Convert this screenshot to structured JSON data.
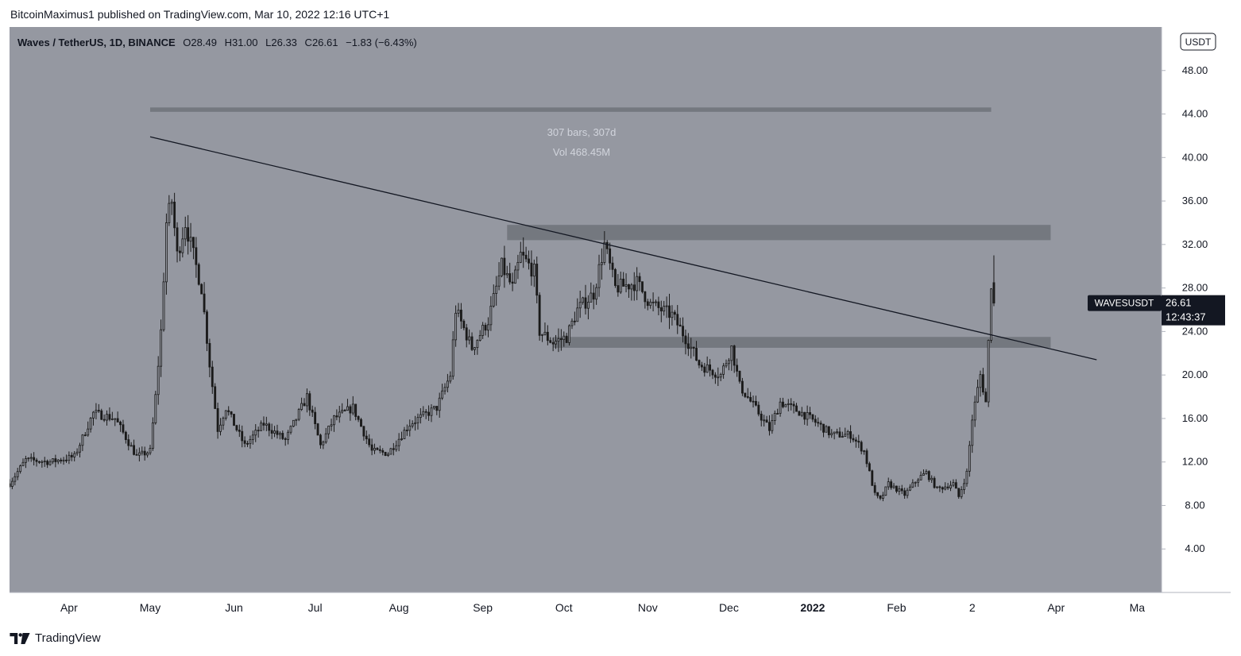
{
  "header": {
    "published_line": "BitcoinMaximus1 published on TradingView.com, Mar 10, 2022 12:16 UTC+1"
  },
  "legend": {
    "symbol": "Waves / TetherUS, 1D, BINANCE",
    "o_label": "O",
    "o_value": "28.49",
    "h_label": "H",
    "h_value": "31.00",
    "l_label": "L",
    "l_value": "26.33",
    "c_label": "C",
    "c_value": "26.61",
    "change": "−1.83 (−6.43%)"
  },
  "currency_button": "USDT",
  "measure": {
    "bars": "307 bars, 307d",
    "volume": "Vol 468.45M"
  },
  "price_tag": {
    "symbol": "WAVESUSDT",
    "price": "26.61",
    "countdown": "12:43:37"
  },
  "footer": {
    "brand": "TradingView"
  },
  "colors": {
    "plot_bg": "#9598a1",
    "candle": "#1a1a1a",
    "zone": "#6f7279",
    "text_light": "#d1d4dc",
    "tag_bg": "#131722"
  },
  "chart_data": {
    "type": "candlestick",
    "title": "Waves / TetherUS, 1D, BINANCE",
    "ylim": [
      0,
      52
    ],
    "y_ticks": [
      "4.00",
      "8.00",
      "12.00",
      "16.00",
      "20.00",
      "24.00",
      "28.00",
      "32.00",
      "36.00",
      "40.00",
      "44.00",
      "48.00"
    ],
    "x_ticks": [
      "Apr",
      "May",
      "Jun",
      "Jul",
      "Aug",
      "Sep",
      "Oct",
      "Nov",
      "Dec",
      "2022",
      "Feb",
      "2",
      "Apr",
      "Ma"
    ],
    "x_tick_dates": [
      "2021-04-01",
      "2021-05-01",
      "2021-06-01",
      "2021-07-01",
      "2021-08-01",
      "2021-09-01",
      "2021-10-01",
      "2021-11-01",
      "2021-12-01",
      "2022-01-01",
      "2022-02-01",
      "2022-03-01",
      "2022-04-01",
      "2022-05-01"
    ],
    "price_path": [
      [
        "2021-03-10",
        10.0
      ],
      [
        "2021-03-16",
        12.2
      ],
      [
        "2021-03-25",
        12.0
      ],
      [
        "2021-04-03",
        12.5
      ],
      [
        "2021-04-10",
        16.5
      ],
      [
        "2021-04-18",
        16.0
      ],
      [
        "2021-04-26",
        12.5
      ],
      [
        "2021-05-01",
        13.0
      ],
      [
        "2021-05-03",
        18.0
      ],
      [
        "2021-05-05",
        24.0
      ],
      [
        "2021-05-07",
        34.0
      ],
      [
        "2021-05-09",
        36.0
      ],
      [
        "2021-05-11",
        31.0
      ],
      [
        "2021-05-14",
        34.0
      ],
      [
        "2021-05-18",
        30.0
      ],
      [
        "2021-05-20",
        28.0
      ],
      [
        "2021-05-23",
        21.0
      ],
      [
        "2021-05-26",
        15.0
      ],
      [
        "2021-05-29",
        17.0
      ],
      [
        "2021-06-05",
        13.5
      ],
      [
        "2021-06-12",
        15.5
      ],
      [
        "2021-06-20",
        14.0
      ],
      [
        "2021-06-28",
        18.0
      ],
      [
        "2021-07-03",
        13.5
      ],
      [
        "2021-07-08",
        16.0
      ],
      [
        "2021-07-15",
        17.0
      ],
      [
        "2021-07-22",
        13.0
      ],
      [
        "2021-07-28",
        12.8
      ],
      [
        "2021-08-05",
        15.5
      ],
      [
        "2021-08-15",
        17.0
      ],
      [
        "2021-08-20",
        20.0
      ],
      [
        "2021-08-22",
        26.0
      ],
      [
        "2021-08-28",
        22.5
      ],
      [
        "2021-09-03",
        25.0
      ],
      [
        "2021-09-08",
        30.0
      ],
      [
        "2021-09-12",
        28.0
      ],
      [
        "2021-09-15",
        31.0
      ],
      [
        "2021-09-20",
        29.5
      ],
      [
        "2021-09-22",
        24.0
      ],
      [
        "2021-09-27",
        23.0
      ],
      [
        "2021-10-02",
        23.5
      ],
      [
        "2021-10-06",
        26.0
      ],
      [
        "2021-10-12",
        27.5
      ],
      [
        "2021-10-16",
        32.0
      ],
      [
        "2021-10-20",
        28.0
      ],
      [
        "2021-10-28",
        28.5
      ],
      [
        "2021-11-02",
        26.5
      ],
      [
        "2021-11-10",
        25.5
      ],
      [
        "2021-11-16",
        23.0
      ],
      [
        "2021-11-20",
        21.0
      ],
      [
        "2021-11-28",
        20.0
      ],
      [
        "2021-12-02",
        22.5
      ],
      [
        "2021-12-05",
        19.0
      ],
      [
        "2021-12-12",
        16.5
      ],
      [
        "2021-12-16",
        15.0
      ],
      [
        "2021-12-20",
        17.5
      ],
      [
        "2021-12-28",
        16.5
      ],
      [
        "2022-01-03",
        15.5
      ],
      [
        "2022-01-08",
        14.5
      ],
      [
        "2022-01-15",
        14.5
      ],
      [
        "2022-01-20",
        13.0
      ],
      [
        "2022-01-24",
        9.0
      ],
      [
        "2022-01-26",
        8.5
      ],
      [
        "2022-01-29",
        10.0
      ],
      [
        "2022-02-04",
        9.0
      ],
      [
        "2022-02-09",
        10.5
      ],
      [
        "2022-02-12",
        11.0
      ],
      [
        "2022-02-16",
        9.5
      ],
      [
        "2022-02-22",
        10.0
      ],
      [
        "2022-02-24",
        8.8
      ],
      [
        "2022-02-27",
        11.0
      ],
      [
        "2022-03-01",
        16.0
      ],
      [
        "2022-03-04",
        20.0
      ],
      [
        "2022-03-06",
        17.5
      ],
      [
        "2022-03-07",
        23.0
      ],
      [
        "2022-03-08",
        28.49
      ],
      [
        "2022-03-09",
        26.61
      ]
    ],
    "zones": [
      {
        "from": "2021-05-01",
        "to": "2022-03-08",
        "low": 44.2,
        "high": 44.6
      },
      {
        "from": "2021-09-10",
        "to": "2022-03-30",
        "low": 32.4,
        "high": 33.8
      },
      {
        "from": "2021-09-27",
        "to": "2022-03-30",
        "low": 22.5,
        "high": 23.5
      }
    ],
    "trendline": {
      "from": [
        "2021-05-01",
        41.9
      ],
      "to": [
        "2022-04-16",
        21.4
      ]
    },
    "last": {
      "open": 28.49,
      "high": 31.0,
      "low": 26.33,
      "close": 26.61
    }
  }
}
